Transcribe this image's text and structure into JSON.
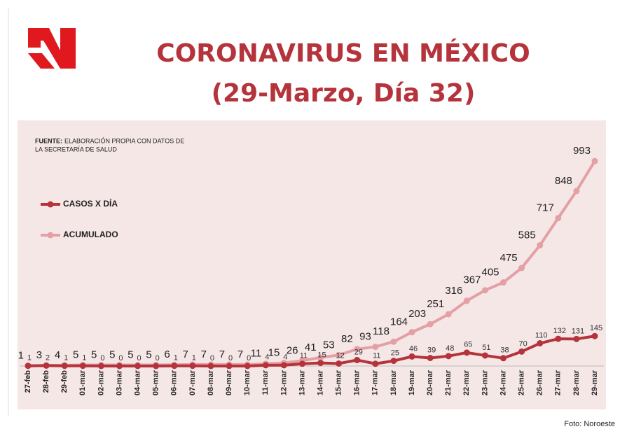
{
  "chart_data": {
    "type": "line",
    "title": "CORONAVIRUS EN MÉXICO",
    "subtitle": "(29-Marzo, Día 32)",
    "source_label": "FUENTE:",
    "source_lines": [
      "ELABORACIÓN PROPIA CON DATOS DE",
      "LA SECRETARÍA DE SALUD"
    ],
    "categories": [
      "27-feb",
      "28-feb",
      "29-feb",
      "01-mar",
      "02-mar",
      "03-mar",
      "04-mar",
      "05-mar",
      "06-mar",
      "07-mar",
      "08-mar",
      "09-mar",
      "10-mar",
      "11-mar",
      "12-mar",
      "13-mar",
      "14-mar",
      "15-mar",
      "16-mar",
      "17-mar",
      "18-mar",
      "19-mar",
      "20-mar",
      "21-mar",
      "22-mar",
      "23-mar",
      "24-mar",
      "25-mar",
      "26-mar",
      "27-mar",
      "28-mar",
      "29-mar"
    ],
    "series": [
      {
        "name": "CASOS X DÍA",
        "color": "#b5333b",
        "values": [
          1,
          2,
          1,
          1,
          0,
          0,
          0,
          0,
          1,
          1,
          0,
          0,
          0,
          4,
          4,
          11,
          15,
          12,
          29,
          11,
          25,
          46,
          39,
          48,
          65,
          51,
          38,
          70,
          110,
          132,
          131,
          145
        ]
      },
      {
        "name": "ACUMULADO",
        "color": "#e3a0a5",
        "values": [
          1,
          3,
          4,
          5,
          5,
          5,
          5,
          5,
          6,
          7,
          7,
          7,
          7,
          11,
          15,
          26,
          41,
          53,
          82,
          93,
          118,
          164,
          203,
          251,
          316,
          367,
          405,
          475,
          585,
          717,
          848,
          993
        ]
      }
    ],
    "ylim": [
      0,
      1180
    ]
  },
  "credit": "Foto: Noroeste"
}
